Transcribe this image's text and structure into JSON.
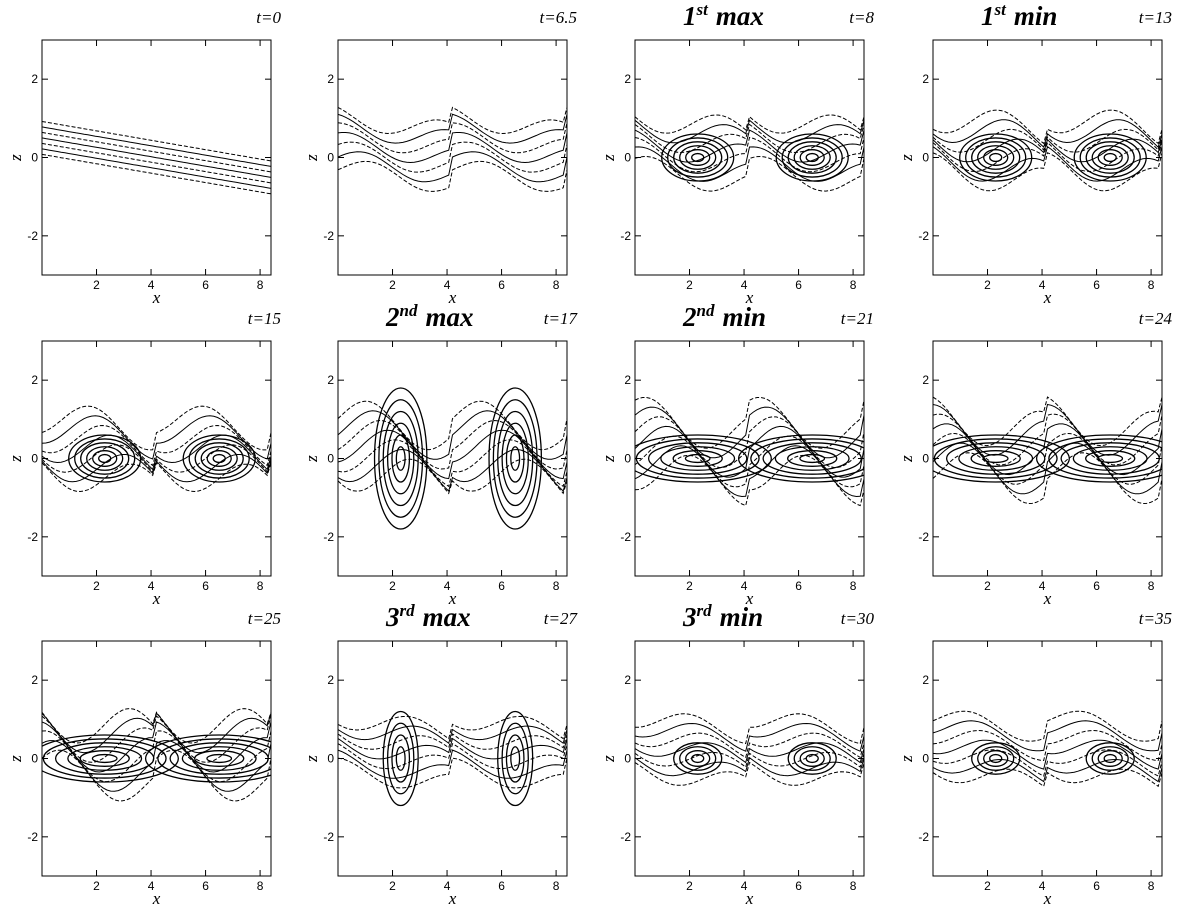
{
  "axes": {
    "xlabel": "x",
    "ylabel": "z",
    "xlim": [
      0,
      8.4
    ],
    "ylim": [
      -3,
      3
    ],
    "xticks": [
      2,
      4,
      6,
      8
    ],
    "yticks": [
      -2,
      0,
      2
    ]
  },
  "panels": [
    {
      "time": "t=0"
    },
    {
      "time": "t=6.5"
    },
    {
      "time": "t=8",
      "heading": {
        "number": "1",
        "suffix": "st",
        "word": "max"
      }
    },
    {
      "time": "t=13",
      "heading": {
        "number": "1",
        "suffix": "st",
        "word": "min"
      }
    },
    {
      "time": "t=15"
    },
    {
      "time": "t=17",
      "heading": {
        "number": "2",
        "suffix": "nd",
        "word": "max"
      }
    },
    {
      "time": "t=21",
      "heading": {
        "number": "2",
        "suffix": "nd",
        "word": "min"
      }
    },
    {
      "time": "t=24"
    },
    {
      "time": "t=25"
    },
    {
      "time": "t=27",
      "heading": {
        "number": "3",
        "suffix": "rd",
        "word": "max"
      }
    },
    {
      "time": "t=30",
      "heading": {
        "number": "3",
        "suffix": "rd",
        "word": "min"
      }
    },
    {
      "time": "t=35"
    }
  ]
}
